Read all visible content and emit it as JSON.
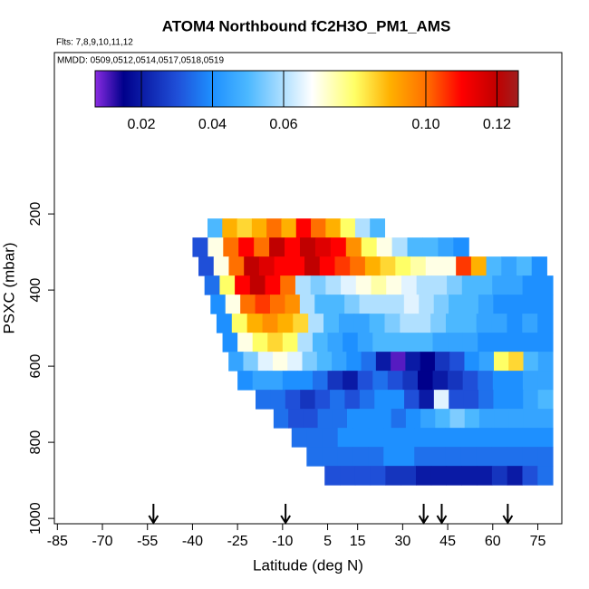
{
  "chart_data": {
    "type": "curtain",
    "title": "ATOM4 Northbound fC2H3O_PM1_AMS",
    "subtitle": "Flts: 7,8,9,10,11,12",
    "annotation": "MMDD: 0509,0512,0514,0517,0518,0519",
    "x_label": "Latitude (deg N)",
    "y_label": "PSXC (mbar)",
    "xlim": [
      -86,
      83
    ],
    "xticks": [
      -85,
      -70,
      -55,
      -40,
      -25,
      -10,
      5,
      15,
      30,
      45,
      60,
      75
    ],
    "ylim": [
      1014,
      -224
    ],
    "yticks": [
      200,
      400,
      600,
      800,
      1000
    ],
    "clim": [
      0.007,
      0.126
    ],
    "cticks": [
      0.02,
      0.04,
      0.06,
      {
        "value": 0.1,
        "label": "0.10"
      },
      0.12
    ],
    "colormap": [
      {
        "value": 0.007,
        "color": "#8a2be2"
      },
      {
        "value": 0.015,
        "color": "#00008b"
      },
      {
        "value": 0.03,
        "color": "#1f4fd8"
      },
      {
        "value": 0.04,
        "color": "#1e90ff"
      },
      {
        "value": 0.05,
        "color": "#4cb8ff"
      },
      {
        "value": 0.06,
        "color": "#b0e0ff"
      },
      {
        "value": 0.068,
        "color": "#ffffff"
      },
      {
        "value": 0.08,
        "color": "#ffff66"
      },
      {
        "value": 0.09,
        "color": "#ffb000"
      },
      {
        "value": 0.1,
        "color": "#ff7000"
      },
      {
        "value": 0.11,
        "color": "#ff0000"
      },
      {
        "value": 0.12,
        "color": "#c00000"
      },
      {
        "value": 0.126,
        "color": "#a02020"
      }
    ],
    "arrows": [
      -53,
      -9,
      37,
      43,
      65
    ],
    "p_edges": [
      212,
      262,
      312,
      362,
      412,
      462,
      512,
      562,
      612,
      662,
      712,
      762,
      812,
      862,
      912
    ],
    "bands": [
      {
        "lat_start": -35,
        "lat_end": 24,
        "values": [
          0.05,
          0.09,
          0.085,
          0.09,
          0.1,
          0.09,
          0.11,
          0.1,
          0.09,
          0.08,
          0.06,
          0.05
        ]
      },
      {
        "lat_start": -40,
        "lat_end": 52,
        "values": [
          0.03,
          0.07,
          0.1,
          0.11,
          0.1,
          0.12,
          0.11,
          0.12,
          0.115,
          0.11,
          0.095,
          0.08,
          0.07,
          0.06,
          0.05,
          0.05,
          0.045,
          0.04
        ]
      },
      {
        "lat_start": -38,
        "lat_end": 78,
        "values": [
          0.03,
          0.07,
          0.1,
          0.12,
          0.115,
          0.11,
          0.11,
          0.12,
          0.11,
          0.105,
          0.1,
          0.09,
          0.085,
          0.08,
          0.075,
          0.07,
          0.07,
          0.105,
          0.09,
          0.05,
          0.045,
          0.05,
          0.04
        ]
      },
      {
        "lat_start": -36,
        "lat_end": 80,
        "values": [
          0.035,
          0.08,
          0.11,
          0.12,
          0.11,
          0.1,
          0.06,
          0.055,
          0.06,
          0.065,
          0.07,
          0.075,
          0.07,
          0.065,
          0.06,
          0.06,
          0.055,
          0.05,
          0.05,
          0.045,
          0.045,
          0.04,
          0.04
        ]
      },
      {
        "lat_start": -34,
        "lat_end": 80,
        "values": [
          0.04,
          0.07,
          0.1,
          0.105,
          0.1,
          0.095,
          0.06,
          0.05,
          0.05,
          0.055,
          0.06,
          0.06,
          0.06,
          0.065,
          0.06,
          0.055,
          0.05,
          0.05,
          0.045,
          0.04,
          0.04,
          0.04,
          0.04
        ]
      },
      {
        "lat_start": -32,
        "lat_end": 80,
        "values": [
          0.04,
          0.08,
          0.09,
          0.095,
          0.09,
          0.085,
          0.06,
          0.05,
          0.045,
          0.045,
          0.05,
          0.055,
          0.06,
          0.06,
          0.055,
          0.05,
          0.05,
          0.045,
          0.045,
          0.04,
          0.045,
          0.04
        ]
      },
      {
        "lat_start": -30,
        "lat_end": 80,
        "values": [
          0.04,
          0.07,
          0.08,
          0.085,
          0.08,
          0.06,
          0.05,
          0.045,
          0.04,
          0.045,
          0.05,
          0.05,
          0.05,
          0.05,
          0.045,
          0.045,
          0.045,
          0.04,
          0.04,
          0.04,
          0.04,
          0.04
        ]
      },
      {
        "lat_start": -28,
        "lat_end": 80,
        "values": [
          0.045,
          0.055,
          0.065,
          0.07,
          0.065,
          0.055,
          0.05,
          0.045,
          0.04,
          0.035,
          0.02,
          0.01,
          0.02,
          0.015,
          0.025,
          0.03,
          0.04,
          0.045,
          0.08,
          0.085,
          0.05,
          0.045
        ]
      },
      {
        "lat_start": -25,
        "lat_end": 80,
        "values": [
          0.04,
          0.045,
          0.045,
          0.04,
          0.04,
          0.035,
          0.025,
          0.02,
          0.03,
          0.035,
          0.03,
          0.025,
          0.015,
          0.02,
          0.025,
          0.03,
          0.035,
          0.04,
          0.04,
          0.045,
          0.045
        ]
      },
      {
        "lat_start": -19,
        "lat_end": 80,
        "values": [
          0.035,
          0.035,
          0.03,
          0.025,
          0.03,
          0.035,
          0.03,
          0.035,
          0.04,
          0.04,
          0.03,
          0.02,
          0.065,
          0.03,
          0.03,
          0.035,
          0.04,
          0.04,
          0.045,
          0.05
        ]
      },
      {
        "lat_start": -13,
        "lat_end": 80,
        "values": [
          0.035,
          0.03,
          0.03,
          0.035,
          0.035,
          0.04,
          0.04,
          0.04,
          0.035,
          0.04,
          0.045,
          0.05,
          0.055,
          0.05,
          0.045,
          0.045,
          0.045,
          0.045,
          0.045
        ]
      },
      {
        "lat_start": -7,
        "lat_end": 80,
        "values": [
          0.035,
          0.035,
          0.035,
          0.04,
          0.04,
          0.04,
          0.04,
          0.04,
          0.04,
          0.04,
          0.04,
          0.04,
          0.04,
          0.04,
          0.04,
          0.04,
          0.04
        ]
      },
      {
        "lat_start": -2,
        "lat_end": 80,
        "values": [
          0.035,
          0.035,
          0.035,
          0.035,
          0.035,
          0.04,
          0.04,
          0.035,
          0.035,
          0.035,
          0.035,
          0.035,
          0.035,
          0.035,
          0.035,
          0.035
        ]
      },
      {
        "lat_start": 4,
        "lat_end": 80,
        "values": [
          0.03,
          0.03,
          0.03,
          0.03,
          0.025,
          0.025,
          0.02,
          0.02,
          0.02,
          0.02,
          0.02,
          0.025,
          0.02,
          0.03,
          0.035
        ]
      }
    ]
  }
}
